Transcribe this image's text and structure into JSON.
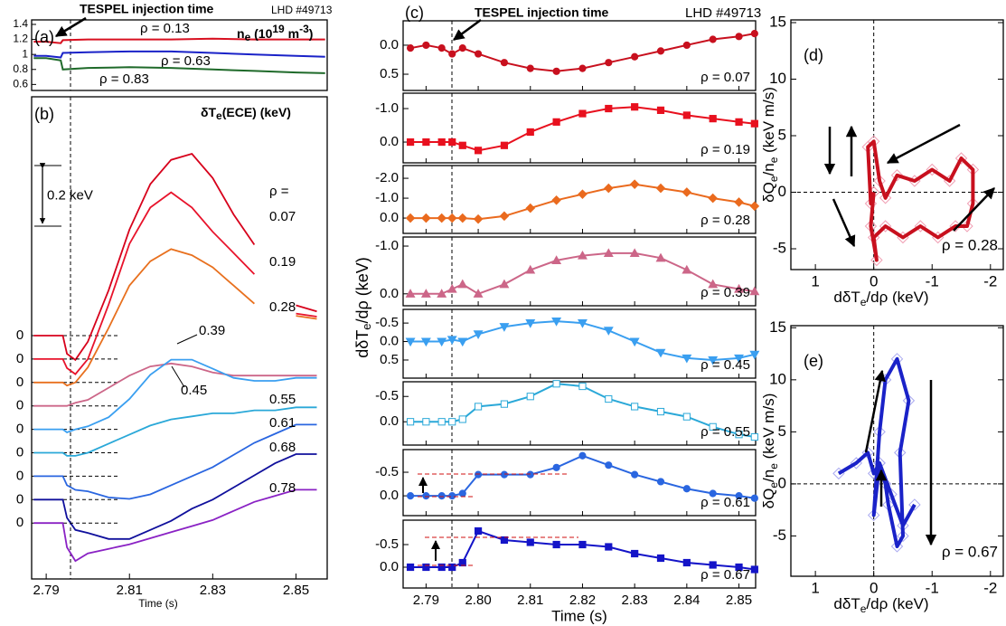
{
  "chart_data": [
    {
      "type": "line",
      "label": "(a)",
      "title": "TESPEL injection time",
      "subtitle": "LHD #49713",
      "ylabel": [
        "n",
        "e",
        " (10",
        "19",
        " m",
        "-3",
        ")"
      ],
      "xlim": [
        2.7865,
        2.8575
      ],
      "ylim": [
        0.52,
        1.46
      ],
      "yticks": [
        0.6,
        0.8,
        1,
        1.2,
        1.4
      ],
      "x": [
        2.787,
        2.79,
        2.7935,
        2.794,
        2.8,
        2.81,
        2.82,
        2.83,
        2.84,
        2.85,
        2.857
      ],
      "series": [
        {
          "name": "ρ = 0.13",
          "color": "#d81020",
          "values": [
            1.17,
            1.17,
            1.15,
            1.19,
            1.2,
            1.2,
            1.2,
            1.21,
            1.2,
            1.2,
            1.2
          ]
        },
        {
          "name": "ρ = 0.63",
          "color": "#1a22c8",
          "values": [
            0.98,
            0.98,
            0.96,
            1.02,
            1.03,
            1.04,
            1.04,
            1.02,
            1.0,
            0.98,
            0.97
          ]
        },
        {
          "name": "ρ = 0.83",
          "color": "#1f6a2a",
          "values": [
            0.95,
            0.95,
            0.92,
            0.8,
            0.82,
            0.83,
            0.82,
            0.8,
            0.78,
            0.76,
            0.75
          ]
        }
      ]
    },
    {
      "type": "line",
      "label": "(b)",
      "ylabel": [
        "δT",
        "e",
        "(ECE) (keV)"
      ],
      "scale": 0.2,
      "scale_label": "0.2 keV",
      "rho_label": "ρ =",
      "baseline_label": "0",
      "xlabel": "Time (s)",
      "xlim": [
        2.7865,
        2.8575
      ],
      "xticks": [
        2.79,
        2.81,
        2.83,
        2.85
      ],
      "x": [
        2.787,
        2.79,
        2.794,
        2.795,
        2.797,
        2.8,
        2.805,
        2.81,
        2.815,
        2.82,
        2.825,
        2.83,
        2.835,
        2.84,
        2.845,
        2.85,
        2.855
      ],
      "series": [
        {
          "name": "0.07",
          "color": "#d7001b",
          "values": [
            0,
            0,
            0,
            -0.06,
            -0.08,
            -0.02,
            0.15,
            0.35,
            0.5,
            0.58,
            0.6,
            0.52,
            0.4,
            0.3,
            null,
            0.1,
            0.08
          ]
        },
        {
          "name": "0.19",
          "color": "#e8132b",
          "values": [
            0,
            0,
            0,
            -0.03,
            -0.05,
            0,
            0.18,
            0.38,
            0.5,
            0.55,
            0.5,
            0.42,
            0.35,
            0.28,
            null,
            0.15,
            0.14
          ]
        },
        {
          "name": "0.28",
          "color": "#e8701e",
          "values": [
            0,
            0,
            0,
            -0.01,
            0,
            0.05,
            0.18,
            0.32,
            0.4,
            0.44,
            0.42,
            0.38,
            0.32,
            0.26,
            null,
            0.22,
            0.21
          ]
        },
        {
          "name": "0.39",
          "color": "#cc6688",
          "values": [
            0,
            0,
            0,
            0,
            0.01,
            0.02,
            0.06,
            0.1,
            0.13,
            0.14,
            0.13,
            0.11,
            0.1,
            0.1,
            0.1,
            0.1,
            0.1
          ]
        },
        {
          "name": "0.45",
          "color": "#3a9ff0",
          "values": [
            0,
            0,
            0,
            -0.01,
            0,
            0.01,
            0.04,
            0.1,
            0.18,
            0.23,
            0.23,
            0.2,
            0.17,
            0.16,
            0.16,
            0.17,
            0.17
          ]
        },
        {
          "name": "0.55",
          "color": "#2aa8d8",
          "values": [
            0,
            0,
            0,
            -0.01,
            -0.01,
            0,
            0.03,
            0.06,
            0.09,
            0.11,
            0.12,
            0.13,
            0.13,
            0.14,
            0.14,
            0.15,
            0.15
          ]
        },
        {
          "name": "0.61",
          "color": "#2a66e0",
          "values": [
            0,
            0,
            0,
            -0.03,
            -0.045,
            -0.05,
            -0.07,
            -0.075,
            -0.06,
            -0.03,
            0,
            0.03,
            0.07,
            0.11,
            0.14,
            0.17,
            0.17
          ]
        },
        {
          "name": "0.68",
          "color": "#10109c",
          "values": [
            0,
            0,
            0,
            -0.06,
            -0.1,
            -0.11,
            -0.13,
            -0.13,
            -0.1,
            -0.07,
            -0.03,
            0,
            0.04,
            0.08,
            0.12,
            0.15,
            0.15
          ]
        },
        {
          "name": "0.78",
          "color": "#8a22c4",
          "values": [
            0,
            0,
            0,
            -0.08,
            -0.125,
            -0.1,
            -0.085,
            -0.07,
            -0.05,
            -0.03,
            -0.01,
            0.01,
            0.04,
            0.07,
            0.09,
            0.11,
            0.11
          ]
        }
      ]
    },
    {
      "type": "line",
      "label": "(c)",
      "title": "TESPEL injection time",
      "subtitle": "LHD #49713",
      "ylabel": [
        "dδT",
        "e",
        "/dρ (keV)"
      ],
      "xlabel": "Time (s)",
      "xlim": [
        2.7856,
        2.8532
      ],
      "xticks": [
        2.79,
        {
          "value": 2.8,
          "label": "2.80"
        },
        2.81,
        2.82,
        2.83,
        2.84,
        2.85
      ],
      "x": [
        2.787,
        2.79,
        2.793,
        2.795,
        2.797,
        2.8,
        2.805,
        2.81,
        2.815,
        2.82,
        2.825,
        2.83,
        2.835,
        2.84,
        2.845,
        2.85,
        2.853
      ],
      "panels": [
        {
          "name": "ρ = 0.07",
          "color": "#c8101e",
          "marker": "circle",
          "ylim": [
            0.78,
            -0.42
          ],
          "yticks": [
            {
              "value": 0,
              "label": "0.0"
            },
            0.5
          ],
          "values": [
            0.05,
            0,
            0.05,
            0.15,
            0.05,
            0.15,
            0.3,
            0.4,
            0.45,
            0.4,
            0.3,
            0.2,
            0.1,
            0,
            -0.1,
            -0.15,
            -0.2
          ]
        },
        {
          "name": "ρ = 0.19",
          "color": "#e8101e",
          "marker": "square",
          "ylim": [
            0.62,
            -1.46
          ],
          "yticks": [
            {
              "value": -1,
              "label": "-1.0"
            },
            {
              "value": 0,
              "label": "0.0"
            }
          ],
          "values": [
            0,
            0,
            0,
            0,
            0.1,
            0.25,
            0.1,
            -0.3,
            -0.6,
            -0.85,
            -1.0,
            -1.05,
            -0.95,
            -0.8,
            -0.7,
            -0.6,
            -0.55
          ]
        },
        {
          "name": "ρ = 0.28",
          "color": "#ea6a1e",
          "marker": "diamond",
          "ylim": [
            0.77,
            -2.64
          ],
          "yticks": [
            {
              "value": -2,
              "label": "-2.0"
            },
            {
              "value": -1,
              "label": "-1.0"
            },
            {
              "value": 0,
              "label": "0.0"
            }
          ],
          "values": [
            0,
            0,
            0,
            0,
            0,
            0.05,
            -0.1,
            -0.5,
            -0.9,
            -1.2,
            -1.5,
            -1.7,
            -1.5,
            -1.3,
            -1.0,
            -0.8,
            -0.6
          ]
        },
        {
          "name": "ρ = 0.39",
          "color": "#cc6688",
          "marker": "triangle-up",
          "ylim": [
            0.25,
            -1.19
          ],
          "yticks": [
            {
              "value": -1,
              "label": "-1.0"
            },
            {
              "value": 0,
              "label": "0.0"
            }
          ],
          "values": [
            0,
            0,
            0,
            -0.1,
            -0.2,
            0,
            -0.2,
            -0.5,
            -0.7,
            -0.8,
            -0.85,
            -0.85,
            -0.75,
            -0.5,
            -0.2,
            -0.1,
            -0.05
          ]
        },
        {
          "name": "ρ = 0.45",
          "color": "#3a9ff0",
          "marker": "triangle-down",
          "ylim": [
            0.99,
            -0.87
          ],
          "yticks": [
            {
              "value": -0.5,
              "label": "-0.5"
            },
            {
              "value": 0,
              "label": "0.0"
            },
            0.5
          ],
          "values": [
            0,
            0,
            0,
            -0.05,
            0,
            -0.2,
            -0.4,
            -0.5,
            -0.55,
            -0.5,
            -0.3,
            0,
            0.3,
            0.45,
            0.5,
            0.45,
            0.35
          ]
        },
        {
          "name": "ρ = 0.55",
          "color": "#2aa8d8",
          "marker": "square-open",
          "ylim": [
            0.46,
            -0.79
          ],
          "yticks": [
            {
              "value": -0.5,
              "label": "-0.5"
            },
            {
              "value": 0,
              "label": "0.0"
            }
          ],
          "values": [
            0,
            0,
            0,
            0,
            -0.05,
            -0.3,
            -0.35,
            -0.5,
            -0.75,
            -0.7,
            -0.45,
            -0.3,
            -0.2,
            -0.1,
            0.1,
            0.25,
            0.3
          ]
        },
        {
          "name": "ρ = 0.61",
          "color": "#2a66e0",
          "marker": "circle",
          "ylim": [
            0.42,
            -0.98
          ],
          "yticks": [
            {
              "value": -0.5,
              "label": "-0.5"
            },
            {
              "value": 0,
              "label": "0.0"
            }
          ],
          "values": [
            0,
            0,
            0,
            0,
            -0.05,
            -0.45,
            -0.45,
            -0.45,
            -0.6,
            -0.85,
            -0.65,
            -0.45,
            -0.3,
            -0.15,
            -0.05,
            0,
            0.05
          ]
        },
        {
          "name": "ρ = 0.67",
          "color": "#1414c8",
          "marker": "square",
          "ylim": [
            0.46,
            -1.04
          ],
          "yticks": [
            {
              "value": -0.5,
              "label": "-0.5"
            },
            {
              "value": 0,
              "label": "0.0"
            }
          ],
          "values": [
            0,
            0,
            0,
            0,
            -0.1,
            -0.8,
            -0.6,
            -0.55,
            -0.5,
            -0.5,
            -0.45,
            -0.3,
            -0.2,
            -0.1,
            -0.05,
            0,
            0.05
          ]
        }
      ]
    },
    {
      "type": "line",
      "label": "(d)",
      "annotation": "ρ = 0.28",
      "xlabel": [
        "dδT",
        "e",
        "/dρ (keV)"
      ],
      "ylabel": [
        "δQ",
        "e",
        "/n",
        "e",
        " (keV m/s)"
      ],
      "xlim": [
        1.42,
        -2.22
      ],
      "ylim": [
        -6.84,
        15.24
      ],
      "xticks": [
        1,
        0,
        -1,
        -2
      ],
      "yticks": [
        -5,
        0,
        5,
        10,
        15
      ],
      "color": "#c8101e",
      "marker_color": "#f0a0b4",
      "x": [
        0,
        0.05,
        -0.05,
        0,
        -0.2,
        -0.5,
        -0.8,
        -1.1,
        -1.4,
        -1.6,
        -1.7,
        -1.7,
        -1.5,
        -1.3,
        -1,
        -0.7,
        -0.4,
        -0.2,
        -0.1,
        0,
        0.1,
        0.05,
        0
      ],
      "values": [
        0,
        -3,
        -6,
        -4,
        -3,
        -4,
        -3,
        -4,
        -3,
        -3,
        -1,
        2,
        3,
        1,
        2,
        1,
        1.5,
        -0.5,
        1,
        4.5,
        4,
        -1,
        0
      ]
    },
    {
      "type": "line",
      "label": "(e)",
      "annotation": "ρ = 0.67",
      "xlabel": [
        "dδT",
        "e",
        "/dρ (keV)"
      ],
      "ylabel": [
        "δQ",
        "e",
        "/n",
        "e",
        " (keV m/s)"
      ],
      "xlim": [
        1.42,
        -2.22
      ],
      "ylim": [
        -8.87,
        15.2
      ],
      "xticks": [
        1,
        0,
        -1,
        -2
      ],
      "yticks": [
        -5,
        0,
        5,
        10,
        15
      ],
      "color": "#1a22c8",
      "marker_color": "#a8a8f0",
      "x": [
        0.6,
        0.3,
        0.1,
        0,
        -0.1,
        -0.2,
        -0.25,
        -0.4,
        -0.5,
        -0.45,
        -0.6,
        -0.4,
        -0.2,
        -0.1,
        0,
        -0.1,
        -0.3,
        -0.5,
        -0.7
      ],
      "values": [
        1,
        2,
        3,
        1,
        2,
        0,
        -2,
        -6,
        -5,
        3,
        8,
        12,
        10,
        5,
        -3,
        2,
        -1,
        -4,
        -2
      ]
    }
  ]
}
